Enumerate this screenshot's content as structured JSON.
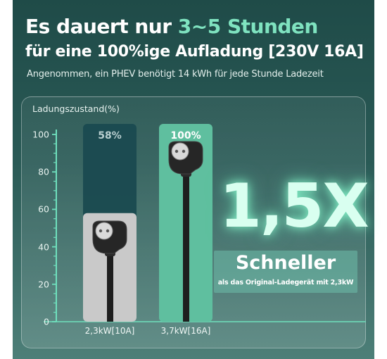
{
  "header": {
    "title_prefix": "Es dauert nur ",
    "title_highlight": "3~5 Stunden",
    "title_line2": "für eine 100%ige Aufladung [230V 16A]",
    "subtitle": "Angenommen, ein PHEV benötigt 14 kWh für jede Stunde Ladezeit"
  },
  "callout": {
    "multiplier": "1,5X",
    "word": "Schneller",
    "note": "als das Original-Ladegerät mit 2,3kW"
  },
  "chart_data": {
    "type": "bar",
    "ylabel": "Ladungszustand(%)",
    "ylim": [
      0,
      100
    ],
    "yticks": [
      0,
      20,
      40,
      60,
      80,
      100
    ],
    "categories": [
      "2,3kW[10A]",
      "3,7kW[16A]"
    ],
    "values": [
      58,
      100
    ],
    "value_labels": [
      "58%",
      "100%"
    ],
    "grid": false
  },
  "colors": {
    "accent": "#7fe3c0",
    "bar_track": "#1a4a50",
    "bar_low": "#c9c9c9",
    "bar_full": "#5fbf9f",
    "axis": "#6fe0bd"
  }
}
